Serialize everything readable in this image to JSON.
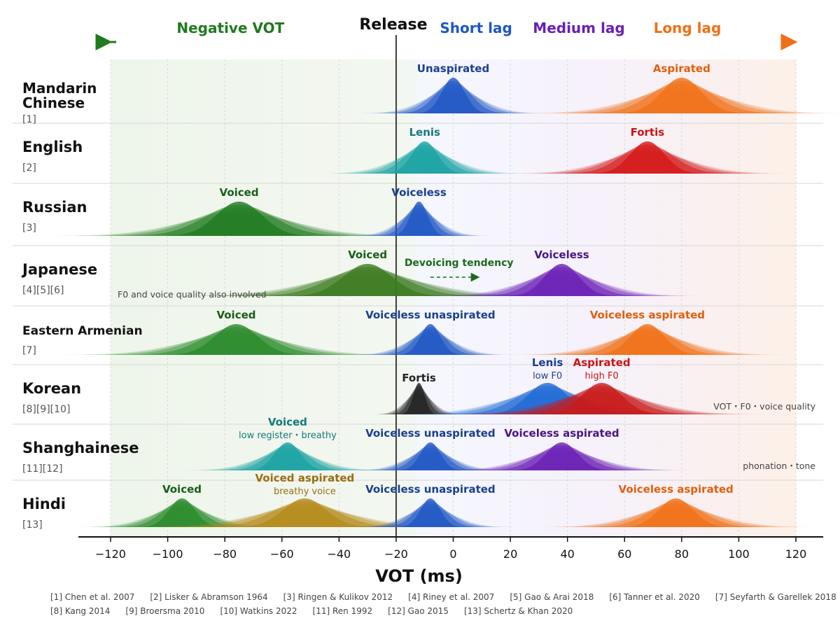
{
  "header": {
    "release": "Release",
    "negative": "Negative VOT",
    "short": "Short lag",
    "medium": "Medium lag",
    "long": "Long lag"
  },
  "colors": {
    "negative": "#1f7a1f",
    "short": "#1f56c4",
    "medium": "#6a1fb5",
    "long": "#f07016",
    "release": "#111111"
  },
  "chart_data": {
    "type": "area",
    "xlabel": "VOT (ms)",
    "xlim": [
      -120,
      120
    ],
    "xticks": [
      -120,
      -100,
      -80,
      -60,
      -40,
      -20,
      0,
      20,
      40,
      60,
      80,
      100,
      120
    ],
    "release_at": -20,
    "grid": true,
    "languages": [
      {
        "name": "Mandarin",
        "name2": "Chinese",
        "refs": "[1]",
        "note": "",
        "categories": [
          {
            "label": "Unaspirated",
            "sub": "",
            "mean": 0,
            "sd": 8,
            "color": "#1f56c4",
            "label_color": "#1a3f8f"
          },
          {
            "label": "Aspirated",
            "sub": "",
            "mean": 80,
            "sd": 14,
            "color": "#f07016",
            "label_color": "#e0600e"
          }
        ]
      },
      {
        "name": "English",
        "name2": "",
        "refs": "[2]",
        "note": "",
        "categories": [
          {
            "label": "Lenis",
            "sub": "",
            "mean": -10,
            "sd": 9,
            "color": "#1aa3a3",
            "label_color": "#157a7a"
          },
          {
            "label": "Fortis",
            "sub": "",
            "mean": 68,
            "sd": 12,
            "color": "#d41818",
            "label_color": "#c81515"
          }
        ]
      },
      {
        "name": "Russian",
        "name2": "",
        "refs": "[3]",
        "note": "",
        "categories": [
          {
            "label": "Voiced",
            "sub": "",
            "mean": -75,
            "sd": 16,
            "color": "#1f7a1f",
            "label_color": "#1a5c1a"
          },
          {
            "label": "Voiceless",
            "sub": "",
            "mean": -12,
            "sd": 6,
            "color": "#1f56c4",
            "label_color": "#1a3f8f"
          }
        ]
      },
      {
        "name": "Japanese",
        "name2": "",
        "refs": "[4][5][6]",
        "note": "F0 and voice quality also involved",
        "arrow_label": "Devoicing tendency",
        "categories": [
          {
            "label": "Voiced",
            "sub": "",
            "mean": -30,
            "sd": 17,
            "color": "#3d7a1f",
            "label_color": "#1a5c1a"
          },
          {
            "label": "Voiceless",
            "sub": "",
            "mean": 38,
            "sd": 12,
            "color": "#6a1fb5",
            "label_color": "#4a1585"
          }
        ]
      },
      {
        "name": "Eastern Armenian",
        "name2": "",
        "refs": "[7]",
        "note": "",
        "categories": [
          {
            "label": "Voiced",
            "sub": "",
            "mean": -76,
            "sd": 15,
            "color": "#2a8a2a",
            "label_color": "#1a5c1a"
          },
          {
            "label": "Voiceless unaspirated",
            "sub": "",
            "mean": -8,
            "sd": 7,
            "color": "#1f56c4",
            "label_color": "#1a3f8f"
          },
          {
            "label": "Voiceless aspirated",
            "sub": "",
            "mean": 68,
            "sd": 12,
            "color": "#f07016",
            "label_color": "#e0600e"
          }
        ]
      },
      {
        "name": "Korean",
        "name2": "",
        "refs": "[8][9][10]",
        "note": "VOT・F0・voice quality",
        "categories": [
          {
            "label": "Fortis",
            "sub": "",
            "mean": -12,
            "sd": 4,
            "color": "#222222",
            "label_color": "#222222"
          },
          {
            "label": "Lenis",
            "sub": "low F0",
            "mean": 33,
            "sd": 14,
            "color": "#1f6ad4",
            "label_color": "#1a3f8f"
          },
          {
            "label": "Aspirated",
            "sub": "high F0",
            "mean": 52,
            "sd": 14,
            "color": "#c81a1a",
            "label_color": "#c81515"
          }
        ]
      },
      {
        "name": "Shanghainese",
        "name2": "",
        "refs": "[11][12]",
        "note": "phonation・tone",
        "categories": [
          {
            "label": "Voiced",
            "sub": "low register・breathy",
            "mean": -58,
            "sd": 9,
            "color": "#1aa3a3",
            "label_color": "#157a7a"
          },
          {
            "label": "Voiceless unaspirated",
            "sub": "",
            "mean": -8,
            "sd": 7,
            "color": "#1f56c4",
            "label_color": "#1a3f8f"
          },
          {
            "label": "Voiceless aspirated",
            "sub": "",
            "mean": 38,
            "sd": 11,
            "color": "#6a1fb5",
            "label_color": "#4a1585"
          }
        ]
      },
      {
        "name": "Hindi",
        "name2": "",
        "refs": "[13]",
        "note": "",
        "categories": [
          {
            "label": "Voiced",
            "sub": "",
            "mean": -95,
            "sd": 9,
            "color": "#2a8a2a",
            "label_color": "#1a5c1a"
          },
          {
            "label": "Voiced aspirated",
            "sub": "breathy voice",
            "mean": -52,
            "sd": 15,
            "color": "#b58a1a",
            "label_color": "#9a6e10"
          },
          {
            "label": "Voiceless unaspirated",
            "sub": "",
            "mean": -8,
            "sd": 7,
            "color": "#1f56c4",
            "label_color": "#1a3f8f"
          },
          {
            "label": "Voiceless aspirated",
            "sub": "",
            "mean": 78,
            "sd": 12,
            "color": "#f07016",
            "label_color": "#e0600e"
          }
        ]
      }
    ]
  },
  "references": {
    "row1": [
      "[1] Chen et al. 2007",
      "[2] Lisker & Abramson 1964",
      "[3] Ringen & Kulikov 2012",
      "[4] Riney et al. 2007",
      "[5] Gao & Arai 2018",
      "[6] Tanner et al. 2020",
      "[7] Seyfarth & Garellek 2018"
    ],
    "row2": [
      "[8] Kang 2014",
      "[9] Broersma 2010",
      "[10] Watkins 2022",
      "[11] Ren 1992",
      "[12] Gao 2015",
      "[13] Schertz & Khan 2020"
    ]
  }
}
